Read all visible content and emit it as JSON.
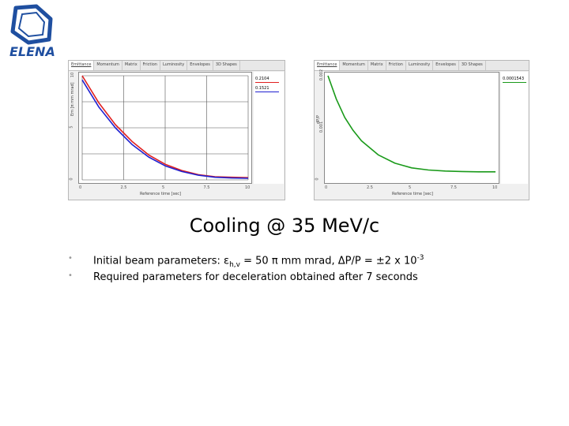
{
  "logo": {
    "text": "ELENA",
    "color": "#1f4fa0"
  },
  "slide": {
    "title": "Cooling @ 35 MeV/c",
    "bullets": [
      {
        "prefix": "Initial beam parameters: ",
        "epsilon_symbol": "ε",
        "epsilon_sub": "h,v",
        "epsilon_value": " = 50 π mm mrad, ",
        "delta_text": "ΔP/P = ±2 x 10",
        "delta_exp": "-3"
      },
      {
        "text": "Required parameters for deceleration obtained after 7 seconds"
      }
    ]
  },
  "panels": {
    "left": {
      "tabs": [
        "Emittance",
        "Momentum",
        "Matrix",
        "Friction",
        "Luminosity",
        "Envelopes",
        "3D Shapes"
      ],
      "ylabel": "Em [π mm mrad]",
      "xlabel": "Reference time [sec]",
      "legend": [
        {
          "label": "0.2104",
          "color": "#e02020"
        },
        {
          "label": "0.1521",
          "color": "#2020d0"
        }
      ]
    },
    "right": {
      "tabs": [
        "Emittance",
        "Momentum",
        "Matrix",
        "Friction",
        "Luminosity",
        "Envelopes",
        "3D Shapes"
      ],
      "ylabel": "dP/P",
      "xlabel": "Reference time [sec]",
      "legend": [
        {
          "label": "0.0001543",
          "color": "#1a9a1a"
        }
      ]
    }
  },
  "chart_data": [
    {
      "type": "line",
      "xlabel": "Reference time [sec]",
      "ylabel": "Em [π mm mrad]",
      "xlim": [
        0,
        10
      ],
      "ylim": [
        0,
        10
      ],
      "x_ticks": [
        "0",
        "2.5",
        "5",
        "7.5",
        "10"
      ],
      "y_ticks": [
        "10",
        "5",
        "0"
      ],
      "legend_position": "right",
      "grid": true,
      "series": [
        {
          "name": "0.2104",
          "color": "#e02020",
          "x": [
            0,
            1,
            2,
            3,
            4,
            5,
            6,
            7,
            8,
            9,
            10
          ],
          "y": [
            10,
            7.4,
            5.3,
            3.7,
            2.4,
            1.5,
            0.9,
            0.5,
            0.3,
            0.25,
            0.21
          ]
        },
        {
          "name": "0.1521",
          "color": "#2020d0",
          "x": [
            0,
            1,
            2,
            3,
            4,
            5,
            6,
            7,
            8,
            9,
            10
          ],
          "y": [
            9.6,
            7.0,
            5.0,
            3.4,
            2.2,
            1.35,
            0.8,
            0.45,
            0.25,
            0.18,
            0.15
          ]
        }
      ]
    },
    {
      "type": "line",
      "xlabel": "Reference time [sec]",
      "ylabel": "dP/P",
      "xlim": [
        0,
        10
      ],
      "ylim": [
        0,
        0.002
      ],
      "x_ticks": [
        "0",
        "2.5",
        "5",
        "7.5",
        "10"
      ],
      "y_ticks": [
        "0.002",
        "0.001",
        "0"
      ],
      "legend_position": "right",
      "grid": false,
      "series": [
        {
          "name": "0.0001543",
          "color": "#1a9a1a",
          "x": [
            0,
            0.5,
            1,
            1.5,
            2,
            3,
            4,
            5,
            6,
            7,
            8,
            9,
            10
          ],
          "y": [
            0.002,
            0.00155,
            0.0012,
            0.00095,
            0.00075,
            0.00048,
            0.00032,
            0.00023,
            0.00019,
            0.00017,
            0.00016,
            0.000155,
            0.000154
          ]
        }
      ]
    }
  ]
}
